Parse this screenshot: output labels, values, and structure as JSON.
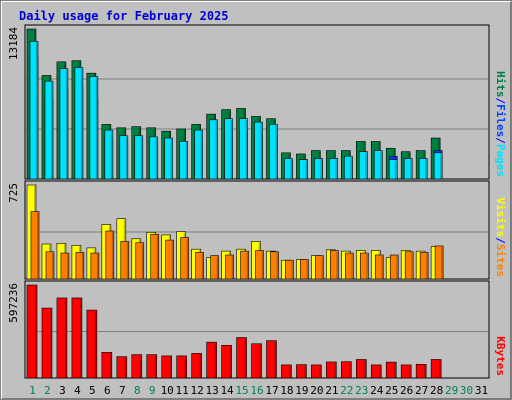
{
  "title": "Daily usage for February 2025",
  "colors": {
    "hits": "#008040",
    "files": "#0040ff",
    "pages": "#00e0ff",
    "visits": "#ffff00",
    "sites": "#ff8000",
    "kbytes": "#ff0000",
    "weekend": "#00805c",
    "weekday": "#000000",
    "separator": "#0000ff",
    "plot_bg": "#c0c0c0",
    "grid": "#808080"
  },
  "chart_data": [
    {
      "type": "bar",
      "categories": [
        "1",
        "2",
        "3",
        "4",
        "5",
        "6",
        "7",
        "8",
        "9",
        "10",
        "11",
        "12",
        "13",
        "14",
        "15",
        "16",
        "17",
        "18",
        "19",
        "20",
        "21",
        "22",
        "23",
        "24",
        "25",
        "26",
        "27",
        "28",
        "29",
        "30",
        "31"
      ],
      "weekend_days": [
        1,
        2,
        8,
        9,
        15,
        16,
        22,
        23,
        29,
        30
      ],
      "ymax_label": "13184",
      "ylim": [
        0,
        13184
      ],
      "right_label": {
        "parts": [
          "Pages",
          "Files",
          "Hits"
        ],
        "separator": "/"
      },
      "series": [
        {
          "name": "Hits",
          "values": [
            13184,
            9100,
            10300,
            10400,
            9300,
            4800,
            4500,
            4600,
            4500,
            4200,
            4400,
            4800,
            5700,
            6100,
            6200,
            5500,
            5300,
            2300,
            2200,
            2500,
            2500,
            2500,
            3300,
            3300,
            2700,
            2400,
            2500,
            3600,
            0,
            0,
            0
          ]
        },
        {
          "name": "Files",
          "values": [
            10700,
            7000,
            8000,
            8100,
            7000,
            3500,
            3200,
            3400,
            3300,
            3000,
            3200,
            3500,
            4100,
            4200,
            4200,
            3900,
            3800,
            1700,
            1700,
            1800,
            1800,
            1800,
            2400,
            2400,
            2000,
            1800,
            1800,
            2500,
            0,
            0,
            0
          ]
        },
        {
          "name": "Pages",
          "values": [
            12100,
            8600,
            9700,
            9800,
            9000,
            4300,
            3800,
            3800,
            3700,
            3600,
            3300,
            4300,
            5200,
            5300,
            5300,
            5000,
            4800,
            1800,
            1700,
            1800,
            1800,
            2000,
            2400,
            2500,
            1700,
            1800,
            1800,
            2300,
            0,
            0,
            0
          ]
        }
      ]
    },
    {
      "type": "bar",
      "categories": [
        "1",
        "2",
        "3",
        "4",
        "5",
        "6",
        "7",
        "8",
        "9",
        "10",
        "11",
        "12",
        "13",
        "14",
        "15",
        "16",
        "17",
        "18",
        "19",
        "20",
        "21",
        "22",
        "23",
        "24",
        "25",
        "26",
        "27",
        "28",
        "29",
        "30",
        "31"
      ],
      "ymax_label": "725",
      "ylim": [
        0,
        725
      ],
      "right_label": {
        "parts": [
          "Sites",
          "Visits"
        ],
        "separator": "/"
      },
      "series": [
        {
          "name": "Visits",
          "values": [
            725,
            270,
            275,
            260,
            240,
            420,
            465,
            310,
            360,
            340,
            365,
            230,
            165,
            215,
            230,
            290,
            215,
            145,
            150,
            180,
            225,
            215,
            220,
            220,
            165,
            220,
            215,
            250,
            0,
            0,
            0
          ]
        },
        {
          "name": "Sites",
          "values": [
            520,
            210,
            200,
            205,
            200,
            370,
            290,
            280,
            345,
            300,
            320,
            205,
            180,
            185,
            215,
            220,
            210,
            145,
            150,
            180,
            220,
            200,
            200,
            185,
            185,
            210,
            205,
            255,
            0,
            0,
            0
          ]
        }
      ]
    },
    {
      "type": "bar",
      "categories": [
        "1",
        "2",
        "3",
        "4",
        "5",
        "6",
        "7",
        "8",
        "9",
        "10",
        "11",
        "12",
        "13",
        "14",
        "15",
        "16",
        "17",
        "18",
        "19",
        "20",
        "21",
        "22",
        "23",
        "24",
        "25",
        "26",
        "27",
        "28",
        "29",
        "30",
        "31"
      ],
      "ymax_label": "597236",
      "ylim": [
        0,
        597236
      ],
      "right_label": {
        "parts": [
          "KBytes"
        ],
        "separator": "/"
      },
      "series": [
        {
          "name": "KBytes",
          "values": [
            597236,
            449000,
            514000,
            514000,
            436000,
            165000,
            137000,
            150000,
            150000,
            142000,
            142000,
            158000,
            230000,
            210000,
            260000,
            220000,
            240000,
            84000,
            86000,
            84000,
            103000,
            105000,
            119000,
            84000,
            102000,
            84000,
            88000,
            119000,
            0,
            0,
            0
          ]
        }
      ]
    }
  ]
}
